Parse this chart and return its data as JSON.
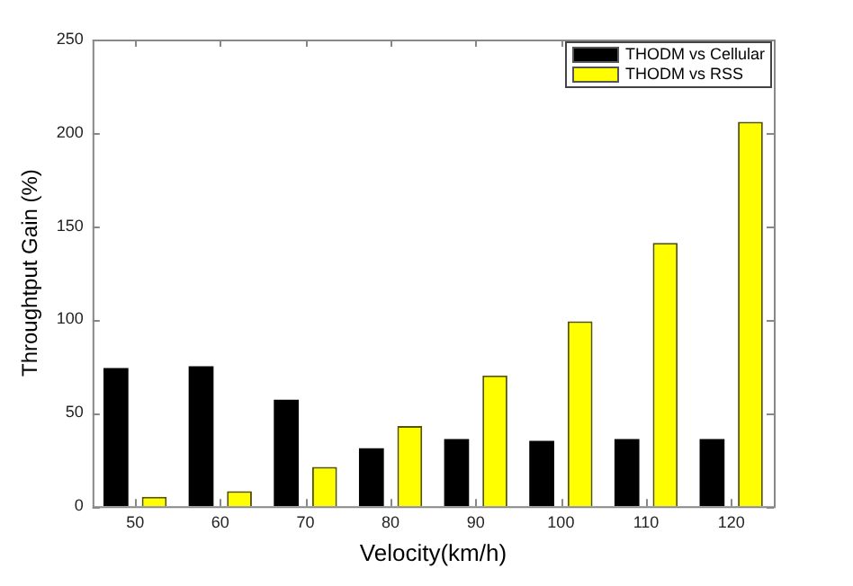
{
  "chart_data": {
    "type": "bar",
    "xlabel": "Velocity(km/h)",
    "ylabel": "Throughtput Gain (%)",
    "categories": [
      "50",
      "60",
      "70",
      "80",
      "90",
      "100",
      "110",
      "120"
    ],
    "series": [
      {
        "name": "THODM vs Cellular",
        "color": "#000000",
        "values": [
          74,
          75,
          57,
          31,
          36,
          35,
          36,
          36
        ]
      },
      {
        "name": "THODM vs RSS",
        "color": "#ffff00",
        "values": [
          5,
          8,
          21,
          43,
          70,
          99,
          141,
          206
        ]
      }
    ],
    "ylim": [
      0,
      250
    ],
    "yticks": [
      0,
      50,
      100,
      150,
      200,
      250
    ],
    "grid": false,
    "legend": "top right"
  }
}
